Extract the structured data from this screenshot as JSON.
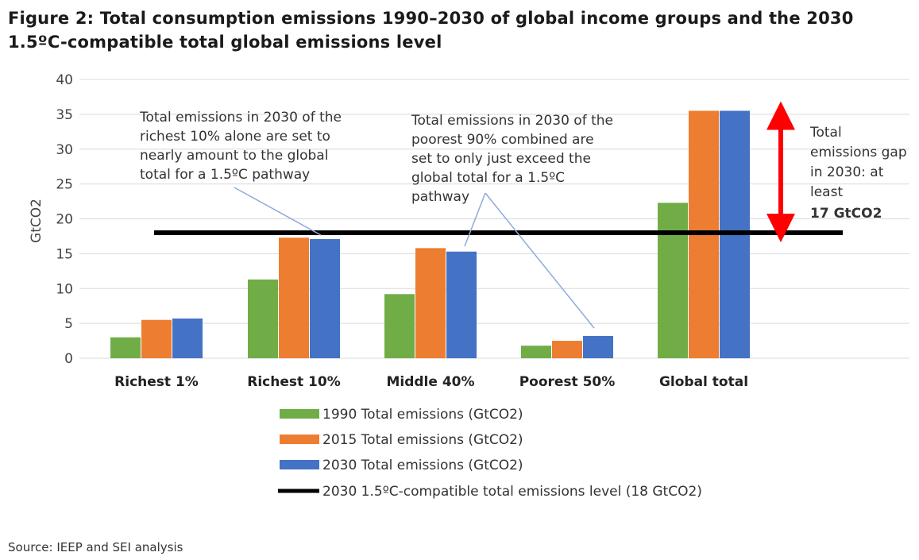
{
  "title": "Figure 2: Total consumption emissions 1990–2030 of global income groups and the 2030 1.5ºC-compatible total global emissions level",
  "source": "Source: IEEP and SEI analysis",
  "colors": {
    "series_1990": "#70ad47",
    "series_2015": "#ed7d31",
    "series_2030": "#4472c4",
    "reference": "#000000",
    "gap_arrow": "#ff0000",
    "annotation_line": "#8eaadb",
    "grid": "#d9d9d9"
  },
  "annotations": {
    "richest": [
      "Total emissions in 2030 of the",
      "richest 10% alone are set to",
      "nearly amount to the global",
      "total for a 1.5ºC pathway"
    ],
    "poorest": [
      "Total emissions in 2030 of the",
      "poorest 90% combined are",
      "set to only just exceed the",
      "global total for a 1.5ºC",
      "pathway"
    ],
    "gap": [
      "Total",
      "emissions gap",
      "in 2030: at",
      "least"
    ],
    "gap_value": "17 GtCO2"
  },
  "chart_data": {
    "type": "bar",
    "title": "Figure 2: Total consumption emissions 1990–2030 of global income groups and the 2030 1.5ºC-compatible total global emissions level",
    "categories": [
      "Richest 1%",
      "Richest 10%",
      "Middle 40%",
      "Poorest 50%",
      "Global total"
    ],
    "series": [
      {
        "name": "1990 Total emissions (GtCO2)",
        "values": [
          3.0,
          11.3,
          9.2,
          1.8,
          22.3
        ]
      },
      {
        "name": "2015 Total emissions (GtCO2)",
        "values": [
          5.5,
          17.3,
          15.8,
          2.5,
          35.5
        ]
      },
      {
        "name": "2030 Total emissions (GtCO2)",
        "values": [
          5.7,
          17.1,
          15.3,
          3.2,
          35.5
        ]
      }
    ],
    "reference_line": {
      "name": "2030 1.5ºC-compatible total emissions level (18 GtCO2)",
      "value": 18
    },
    "ylabel": "GtCO2",
    "xlabel": "",
    "ylim": [
      0,
      40
    ],
    "yticks": [
      0,
      5,
      10,
      15,
      20,
      25,
      30,
      35,
      40
    ],
    "grid": true,
    "legend_position": "bottom"
  }
}
